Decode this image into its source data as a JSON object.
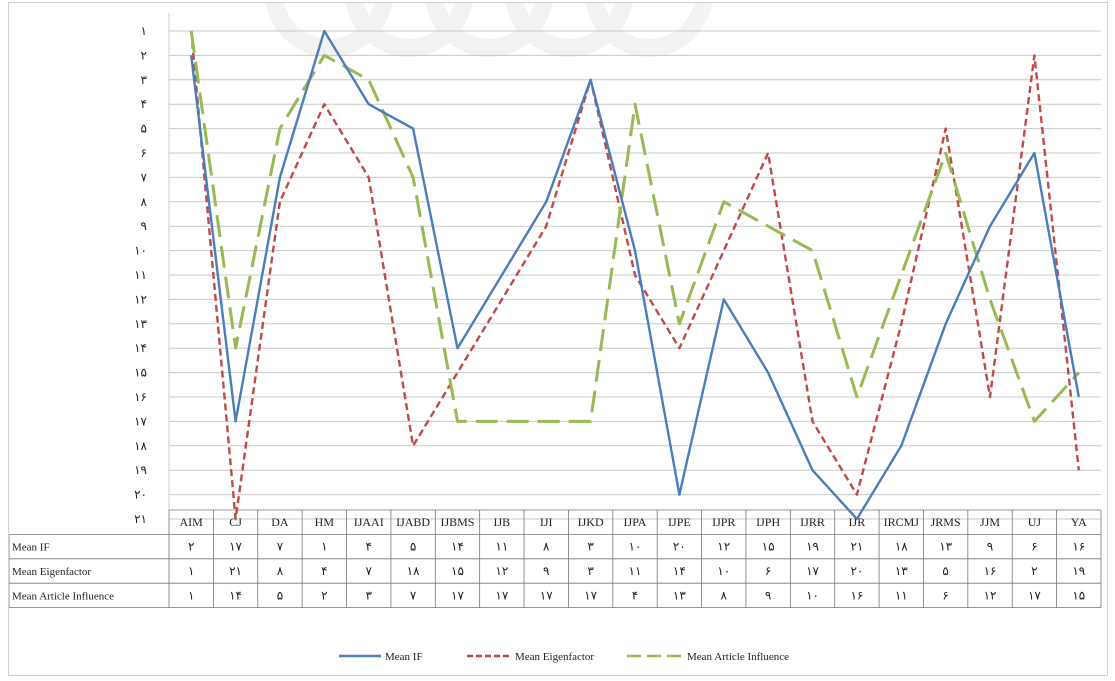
{
  "chart_data": {
    "type": "line",
    "categories": [
      "AIM",
      "CJ",
      "DA",
      "HM",
      "IJAAI",
      "IJABD",
      "IJBMS",
      "IJB",
      "IJI",
      "IJKD",
      "IJPA",
      "IJPE",
      "IJPR",
      "IJPH",
      "IJRR",
      "IJR",
      "IRCMJ",
      "JRMS",
      "JJM",
      "UJ",
      "YA"
    ],
    "y_tick_labels": [
      "۱",
      "۲",
      "۳",
      "۴",
      "۵",
      "۶",
      "۷",
      "۸",
      "۹",
      "۱۰",
      "۱۱",
      "۱۲",
      "۱۳",
      "۱۴",
      "۱۵",
      "۱۶",
      "۱۷",
      "۱۸",
      "۱۹",
      "۲۰",
      "۲۱"
    ],
    "ylim": [
      1,
      21
    ],
    "y_reversed": true,
    "grid": true,
    "legend_position": "bottom",
    "series": [
      {
        "name": "Mean IF",
        "color": "#4a7ebb",
        "dash": "solid",
        "values": [
          2,
          17,
          7,
          1,
          4,
          5,
          14,
          11,
          8,
          3,
          10,
          20,
          12,
          15,
          19,
          21,
          18,
          13,
          9,
          6,
          16
        ],
        "labels": [
          "۲",
          "۱۷",
          "۷",
          "۱",
          "۴",
          "۵",
          "۱۴",
          "۱۱",
          "۸",
          "۳",
          "۱۰",
          "۲۰",
          "۱۲",
          "۱۵",
          "۱۹",
          "۲۱",
          "۱۸",
          "۱۳",
          "۹",
          "۶",
          "۱۶"
        ]
      },
      {
        "name": "Mean Eigenfactor",
        "color": "#be4b48",
        "dash": "short",
        "values": [
          1,
          21,
          8,
          4,
          7,
          18,
          15,
          12,
          9,
          3,
          11,
          14,
          10,
          6,
          17,
          20,
          13,
          5,
          16,
          2,
          19
        ],
        "labels": [
          "۱",
          "۲۱",
          "۸",
          "۴",
          "۷",
          "۱۸",
          "۱۵",
          "۱۲",
          "۹",
          "۳",
          "۱۱",
          "۱۴",
          "۱۰",
          "۶",
          "۱۷",
          "۲۰",
          "۱۳",
          "۵",
          "۱۶",
          "۲",
          "۱۹"
        ]
      },
      {
        "name": "Mean Article Influence",
        "color": "#98b954",
        "dash": "long",
        "values": [
          1,
          14,
          5,
          2,
          3,
          7,
          17,
          17,
          17,
          17,
          4,
          13,
          8,
          9,
          10,
          16,
          11,
          6,
          12,
          17,
          15
        ],
        "labels": [
          "۱",
          "۱۴",
          "۵",
          "۲",
          "۳",
          "۷",
          "۱۷",
          "۱۷",
          "۱۷",
          "۱۷",
          "۴",
          "۱۳",
          "۸",
          "۹",
          "۱۰",
          "۱۶",
          "۱۱",
          "۶",
          "۱۲",
          "۱۷",
          "۱۵"
        ]
      }
    ]
  }
}
